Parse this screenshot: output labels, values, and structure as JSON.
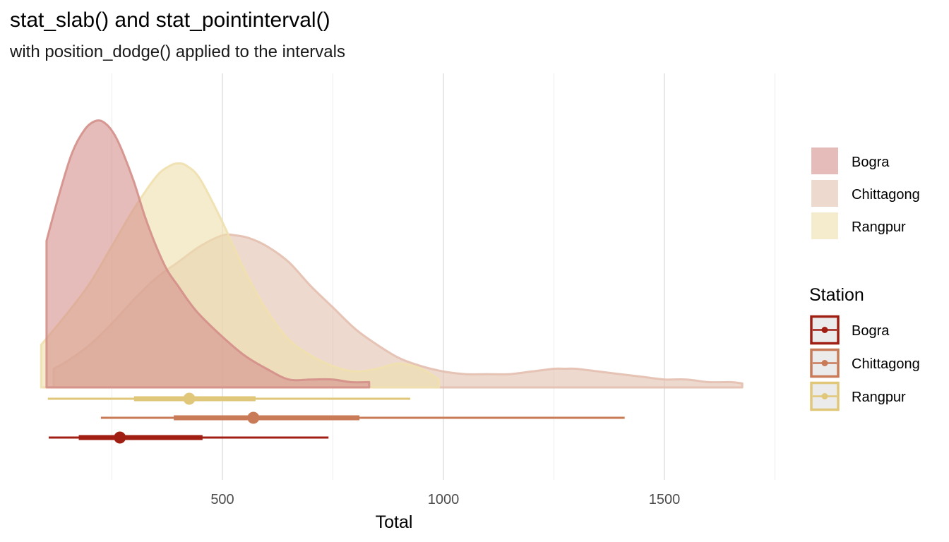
{
  "chart_data": {
    "type": "density",
    "title": "stat_slab() and stat_pointinterval()",
    "subtitle": "with position_dodge() applied to the intervals",
    "xlabel": "Total",
    "ylabel": "",
    "xlim": [
      90,
      1820
    ],
    "x_ticks": [
      500,
      1000,
      1500
    ],
    "x_tick_labels": [
      "500",
      "1000",
      "1500"
    ],
    "minor_gridlines": [
      250,
      750,
      1250,
      1750
    ],
    "grid": true,
    "legend_position": "right",
    "slab_legend": {
      "entries": [
        "Bogra",
        "Chittagong",
        "Rangpur"
      ]
    },
    "interval_legend": {
      "title": "Station",
      "entries": [
        "Bogra",
        "Chittagong",
        "Rangpur"
      ]
    },
    "series": [
      {
        "name": "Bogra",
        "color": "#A01F12",
        "fill": "#D48F8A",
        "density": {
          "x": [
            102,
            130,
            160,
            190,
            215,
            235,
            255,
            275,
            300,
            325,
            350,
            375,
            400,
            425,
            450,
            500,
            550,
            600,
            650,
            700,
            750,
            790,
            832
          ],
          "y": [
            0.55,
            0.72,
            0.88,
            0.97,
            1.0,
            0.99,
            0.95,
            0.88,
            0.77,
            0.64,
            0.53,
            0.44,
            0.38,
            0.32,
            0.27,
            0.19,
            0.12,
            0.07,
            0.03,
            0.03,
            0.03,
            0.02,
            0.02
          ]
        },
        "interval": {
          "point": 268,
          "inner": [
            175,
            455
          ],
          "outer": [
            107,
            740
          ]
        }
      },
      {
        "name": "Chittagong",
        "color": "#C87B56",
        "fill": "#E3BFAF",
        "density": {
          "x": [
            118,
            150,
            200,
            250,
            300,
            350,
            400,
            450,
            500,
            530,
            560,
            600,
            650,
            700,
            750,
            800,
            850,
            900,
            950,
            1000,
            1050,
            1100,
            1150,
            1200,
            1250,
            1275,
            1300,
            1350,
            1400,
            1450,
            1500,
            1550,
            1600,
            1650,
            1676
          ],
          "y": [
            0.07,
            0.1,
            0.16,
            0.24,
            0.33,
            0.41,
            0.47,
            0.53,
            0.57,
            0.57,
            0.56,
            0.53,
            0.47,
            0.38,
            0.3,
            0.22,
            0.16,
            0.11,
            0.08,
            0.06,
            0.05,
            0.05,
            0.05,
            0.06,
            0.07,
            0.07,
            0.07,
            0.06,
            0.05,
            0.04,
            0.03,
            0.03,
            0.02,
            0.02,
            0.015
          ]
        },
        "interval": {
          "point": 570,
          "inner": [
            390,
            810
          ],
          "outer": [
            225,
            1410
          ]
        }
      },
      {
        "name": "Rangpur",
        "color": "#E0C77A",
        "fill": "#EFE0AE",
        "density": {
          "x": [
            90,
            150,
            200,
            250,
            300,
            350,
            380,
            400,
            420,
            450,
            500,
            550,
            600,
            650,
            700,
            750,
            800,
            850,
            900,
            950,
            990
          ],
          "y": [
            0.16,
            0.28,
            0.39,
            0.53,
            0.67,
            0.79,
            0.83,
            0.84,
            0.83,
            0.78,
            0.62,
            0.44,
            0.29,
            0.18,
            0.12,
            0.08,
            0.06,
            0.07,
            0.09,
            0.07,
            0.03
          ]
        },
        "interval": {
          "point": 425,
          "inner": [
            300,
            575
          ],
          "outer": [
            105,
            925
          ]
        }
      }
    ]
  }
}
